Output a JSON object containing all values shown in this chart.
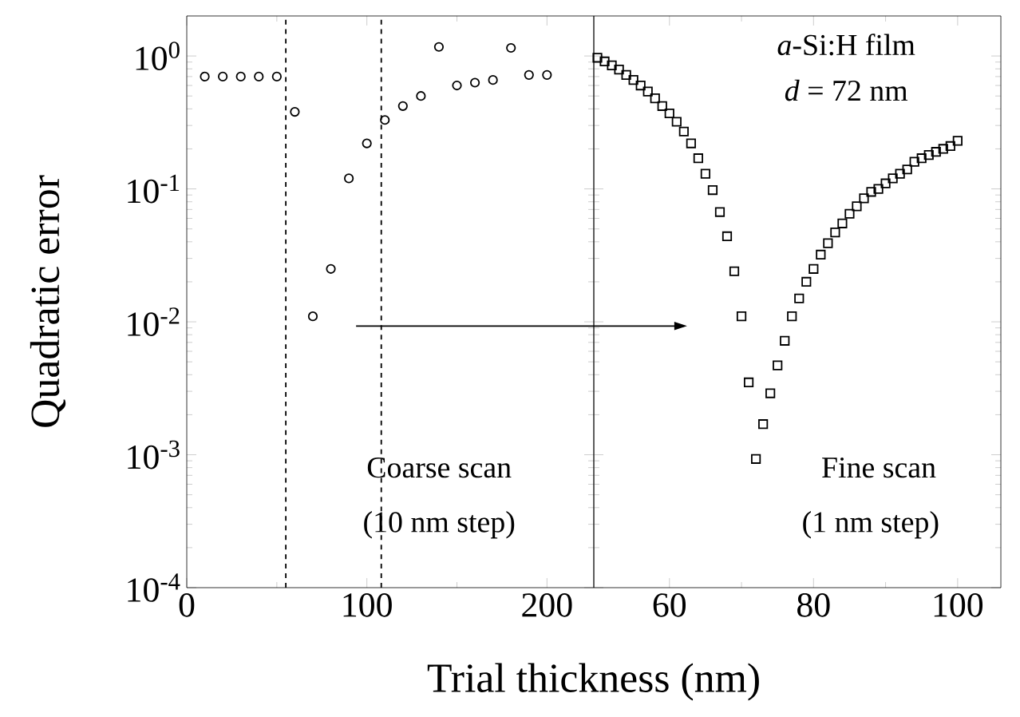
{
  "chart_data": [
    {
      "type": "scatter",
      "xlabel": "Trial thickness (nm)",
      "ylabel": "Quadratic error",
      "log": "y",
      "series": [
        {
          "marker": "circle",
          "color": "#000000",
          "x": [
            10,
            20,
            30,
            40,
            50,
            60,
            70,
            80,
            90,
            100,
            110,
            120,
            130,
            140,
            150,
            160,
            170,
            180,
            190,
            200
          ],
          "values": [
            0.7,
            0.7,
            0.7,
            0.7,
            0.7,
            0.38,
            0.011,
            0.025,
            0.12,
            0.22,
            0.33,
            0.42,
            0.5,
            1.17,
            0.6,
            0.63,
            0.66,
            1.15,
            0.72,
            0.72
          ]
        },
        {
          "type": "line",
          "marker": "none",
          "color": "#000000",
          "x": [
            94,
            226
          ],
          "values": [
            0.0093,
            0.0093
          ]
        }
      ],
      "xlim": [
        0,
        226
      ],
      "xticks": [
        0,
        100,
        200
      ],
      "ylim": [
        0.0001,
        2
      ],
      "yticks": [
        {
          "value": 0.0001,
          "label": "10$^{-4}$"
        },
        {
          "value": 0.001,
          "label": "10$^{-3}$"
        },
        {
          "value": 0.01,
          "label": "10$^{-2}$"
        },
        {
          "value": 0.1,
          "label": "10$^{-1}$"
        },
        {
          "value": 1,
          "label": "10$^{0}$"
        }
      ],
      "ref_lines": [
        {
          "axis": "x",
          "value": 55,
          "line_style": "dashed"
        },
        {
          "axis": "x",
          "value": 108,
          "line_style": "dashed"
        }
      ],
      "annotations": [
        "Coarse scan",
        "(10 nm step)"
      ]
    },
    {
      "type": "scatter",
      "log": "y",
      "tick_labels": "x",
      "series": [
        {
          "marker": "square",
          "color": "#000000",
          "x": [
            50,
            51,
            52,
            53,
            54,
            55,
            56,
            57,
            58,
            59,
            60,
            61,
            62,
            63,
            64,
            65,
            66,
            67,
            68,
            69,
            70,
            71,
            72,
            73,
            74,
            75,
            76,
            77,
            78,
            79,
            80,
            81,
            82,
            83,
            84,
            85,
            86,
            87,
            88,
            89,
            90,
            91,
            92,
            93,
            94,
            95,
            96,
            97,
            98,
            99,
            100
          ],
          "values": [
            0.97,
            0.91,
            0.85,
            0.79,
            0.72,
            0.66,
            0.6,
            0.54,
            0.48,
            0.42,
            0.37,
            0.32,
            0.27,
            0.22,
            0.17,
            0.13,
            0.098,
            0.067,
            0.044,
            0.024,
            0.011,
            0.0035,
            0.00093,
            0.0017,
            0.0029,
            0.0047,
            0.0072,
            0.011,
            0.015,
            0.02,
            0.025,
            0.032,
            0.039,
            0.047,
            0.055,
            0.065,
            0.074,
            0.085,
            0.095,
            0.1,
            0.11,
            0.12,
            0.13,
            0.14,
            0.16,
            0.17,
            0.18,
            0.19,
            0.2,
            0.21,
            0.23
          ]
        },
        {
          "type": "line",
          "marker": "none",
          "color": "#000000",
          "x": [
            49.5,
            62
          ],
          "values": [
            0.0093,
            0.0093
          ]
        }
      ],
      "xlim": [
        49.5,
        106
      ],
      "xticks": [
        60,
        80,
        100
      ],
      "ylim": [
        0.0001,
        2
      ],
      "yticks": [
        {
          "value": 0.0001,
          "label": null
        },
        {
          "value": 0.001,
          "label": null
        },
        {
          "value": 0.01,
          "label": null
        },
        {
          "value": 0.1,
          "label": null
        },
        {
          "value": 1,
          "label": null
        }
      ],
      "annotations": [
        "*a*-Si:H film",
        "*d* = 72 nm",
        "Fine scan",
        "(1 nm step)"
      ]
    }
  ]
}
